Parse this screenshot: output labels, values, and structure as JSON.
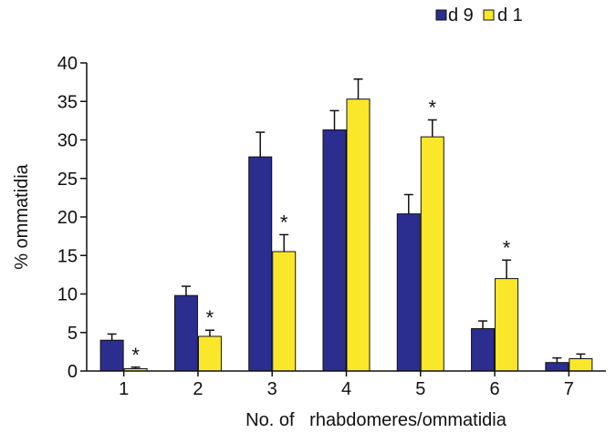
{
  "chart_data": {
    "type": "bar",
    "title": "",
    "xlabel": "No. of   rhabdomeres/ommatidia",
    "ylabel": "% ommatidia",
    "categories": [
      "1",
      "2",
      "3",
      "4",
      "5",
      "6",
      "7"
    ],
    "ylim": [
      0,
      40
    ],
    "yticks": [
      "0",
      "5",
      "10",
      "15",
      "20",
      "25",
      "30",
      "35",
      "40"
    ],
    "grid": false,
    "legend_position": "top-right",
    "significance_marker": "*",
    "series": [
      {
        "name": "d 9",
        "color": "#2b2d8f",
        "values": [
          4.0,
          9.8,
          27.8,
          31.3,
          20.4,
          5.5,
          1.1
        ],
        "errors": [
          0.8,
          1.2,
          3.2,
          2.5,
          2.5,
          1.0,
          0.6
        ],
        "significant": [
          false,
          false,
          false,
          false,
          false,
          false,
          false
        ]
      },
      {
        "name": "d 1",
        "color": "#fbe72a",
        "values": [
          0.3,
          4.5,
          15.5,
          35.3,
          30.4,
          12.0,
          1.6
        ],
        "errors": [
          0.2,
          0.8,
          2.2,
          2.6,
          2.2,
          2.4,
          0.6
        ],
        "significant": [
          true,
          true,
          true,
          false,
          true,
          true,
          false
        ]
      }
    ]
  }
}
